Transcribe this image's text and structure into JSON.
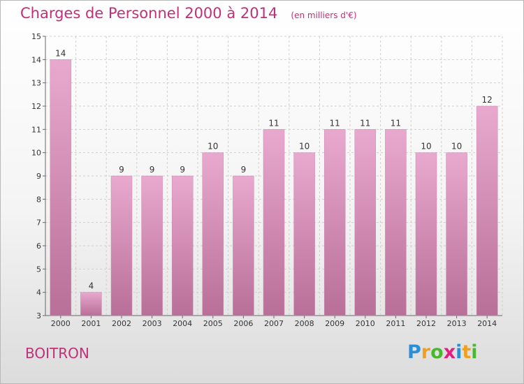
{
  "chart_data": {
    "type": "bar",
    "title": "Charges de Personnel 2000 à 2014",
    "subtitle": "(en milliers d'€)",
    "categories": [
      "2000",
      "2001",
      "2002",
      "2003",
      "2004",
      "2005",
      "2006",
      "2007",
      "2008",
      "2009",
      "2010",
      "2011",
      "2012",
      "2013",
      "2014"
    ],
    "values": [
      14,
      4,
      9,
      9,
      9,
      10,
      9,
      11,
      10,
      11,
      11,
      11,
      10,
      10,
      12
    ],
    "ylim": [
      3,
      15
    ],
    "yticks": [
      3,
      4,
      5,
      6,
      7,
      8,
      9,
      10,
      11,
      12,
      13,
      14,
      15
    ],
    "grid": true,
    "bar_color_top": "#e9a9cf",
    "bar_color_bottom": "#b86f98"
  },
  "footer": {
    "commune": "BOITRON",
    "brand_letters": [
      "P",
      "r",
      "o",
      "x",
      "i",
      "t",
      "i"
    ],
    "brand_colors": [
      "#2a8fd6",
      "#f0a020",
      "#48b830",
      "#e02080",
      "#2a8fd6",
      "#f0a020",
      "#48b830"
    ]
  }
}
